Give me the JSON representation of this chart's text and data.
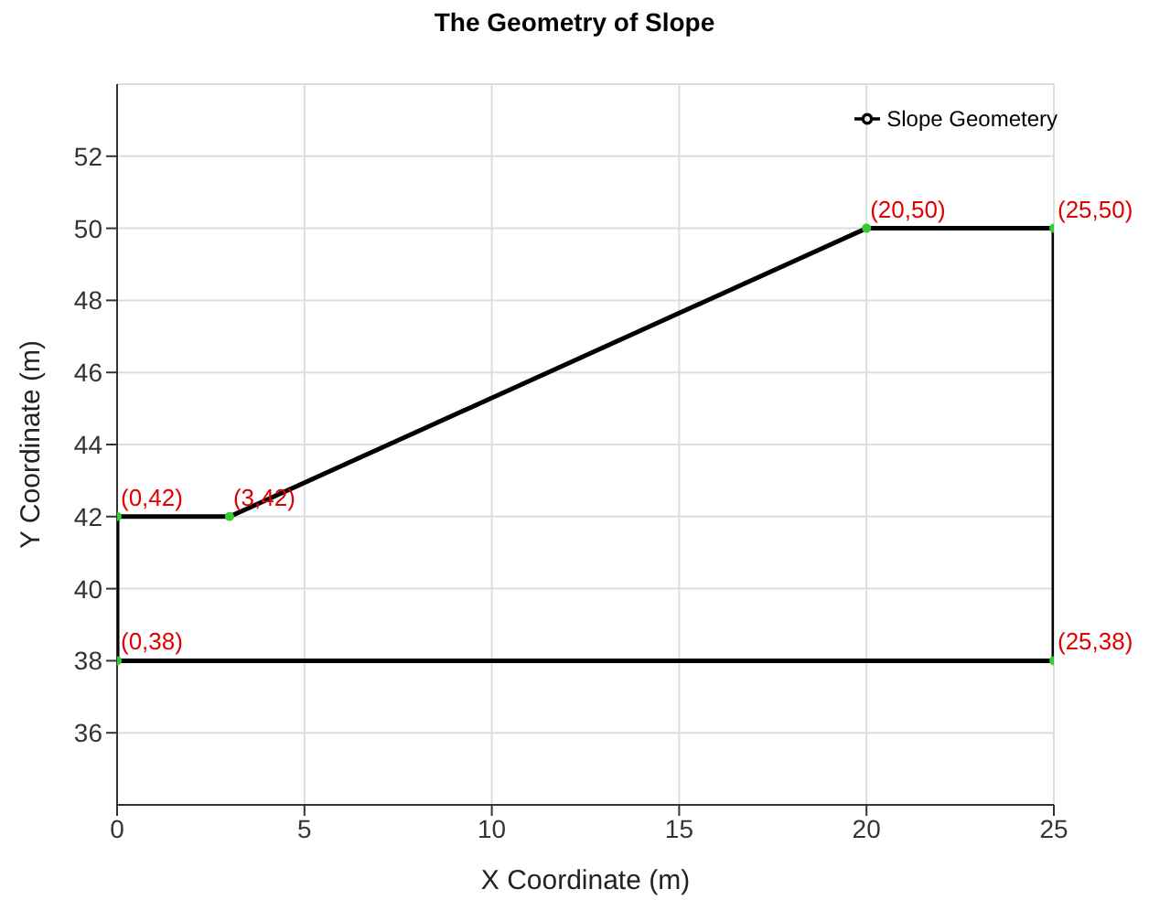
{
  "chart_data": {
    "type": "line",
    "title": "The Geometry of Slope",
    "xlabel": "X Coordinate (m)",
    "ylabel": "Y Coordinate (m)",
    "x": [
      0,
      0,
      3,
      20,
      25,
      25
    ],
    "series": [
      {
        "name": "Slope Geometery",
        "color": "#000000",
        "values": [
          38,
          42,
          42,
          50,
          50,
          38
        ]
      }
    ],
    "ref_lines": [
      {
        "axis": "y",
        "value": 38,
        "color": "#000000"
      }
    ],
    "xlim": [
      0,
      25
    ],
    "xticks": [
      0,
      5,
      10,
      15,
      20,
      25
    ],
    "ylim": [
      34,
      54
    ],
    "yticks": [
      36,
      38,
      40,
      42,
      44,
      46,
      48,
      50,
      52
    ],
    "grid": true,
    "legend": "top right",
    "marker": "circle",
    "annotations": [
      {
        "text": "(0,38)",
        "x": 0,
        "y": 38
      },
      {
        "text": "(0,42)",
        "x": 0,
        "y": 42
      },
      {
        "text": "(3,42)",
        "x": 3,
        "y": 42
      },
      {
        "text": "(20,50)",
        "x": 20,
        "y": 50
      },
      {
        "text": "(25,50)",
        "x": 25,
        "y": 50
      },
      {
        "text": "(25,38)",
        "x": 25,
        "y": 38
      }
    ]
  }
}
